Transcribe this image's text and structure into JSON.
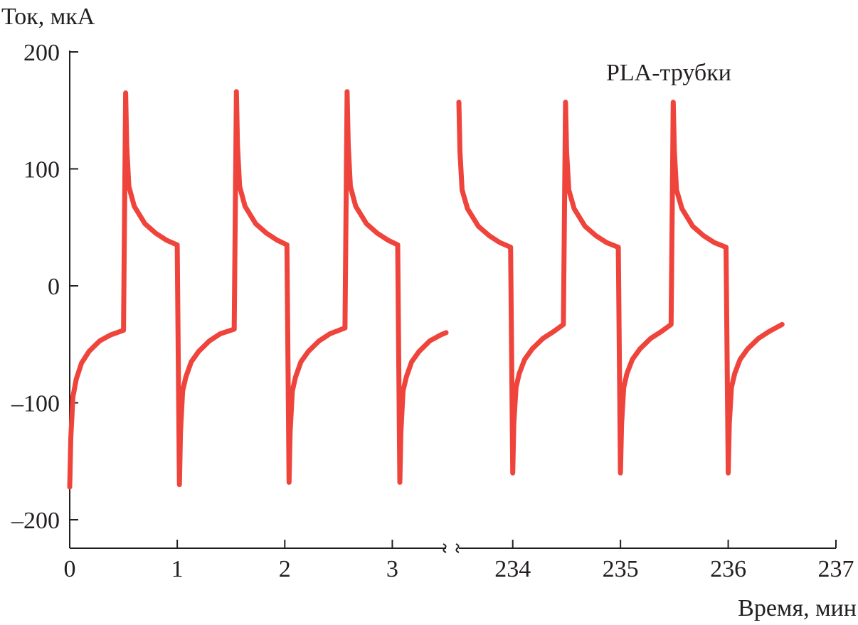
{
  "chart_data": {
    "type": "line",
    "ylabel": "Ток, мкА",
    "xlabel": "Время, мин",
    "annotation": "PLA-трубки",
    "ylim": [
      -237,
      200
    ],
    "yticks": [
      200,
      100,
      0,
      -100,
      -200
    ],
    "ytick_labels": [
      "200",
      "100",
      "0",
      "–100",
      "–200"
    ],
    "x_broken_axis": true,
    "x_segments": [
      {
        "xlim": [
          0,
          3.5
        ],
        "ticks": [
          0,
          1,
          2,
          3
        ],
        "tick_labels": [
          "0",
          "1",
          "2",
          "3"
        ]
      },
      {
        "xlim": [
          233.5,
          237
        ],
        "ticks": [
          234,
          235,
          236,
          237
        ],
        "tick_labels": [
          "234",
          "235",
          "236",
          "237"
        ]
      }
    ],
    "grid": false,
    "series_color": "#ef443b",
    "series": [
      {
        "segment": 0,
        "points": [
          [
            0,
            -172
          ],
          [
            0.01,
            -130
          ],
          [
            0.03,
            -95
          ],
          [
            0.06,
            -80
          ],
          [
            0.11,
            -66
          ],
          [
            0.18,
            -56
          ],
          [
            0.28,
            -47
          ],
          [
            0.38,
            -42
          ],
          [
            0.5,
            -38
          ],
          [
            0.52,
            165
          ],
          [
            0.53,
            120
          ],
          [
            0.55,
            85
          ],
          [
            0.6,
            68
          ],
          [
            0.7,
            53
          ],
          [
            0.8,
            45
          ],
          [
            0.9,
            39
          ],
          [
            1.0,
            35
          ],
          [
            1.02,
            -170
          ],
          [
            1.03,
            -125
          ],
          [
            1.05,
            -90
          ],
          [
            1.08,
            -78
          ],
          [
            1.13,
            -65
          ],
          [
            1.2,
            -56
          ],
          [
            1.3,
            -47
          ],
          [
            1.4,
            -41
          ],
          [
            1.53,
            -37
          ],
          [
            1.55,
            166
          ],
          [
            1.56,
            120
          ],
          [
            1.58,
            85
          ],
          [
            1.63,
            68
          ],
          [
            1.73,
            53
          ],
          [
            1.83,
            45
          ],
          [
            1.93,
            39
          ],
          [
            2.02,
            35
          ],
          [
            2.04,
            -168
          ],
          [
            2.05,
            -125
          ],
          [
            2.07,
            -90
          ],
          [
            2.1,
            -78
          ],
          [
            2.15,
            -65
          ],
          [
            2.22,
            -56
          ],
          [
            2.32,
            -47
          ],
          [
            2.42,
            -41
          ],
          [
            2.56,
            -36
          ],
          [
            2.58,
            166
          ],
          [
            2.59,
            120
          ],
          [
            2.61,
            85
          ],
          [
            2.66,
            68
          ],
          [
            2.76,
            53
          ],
          [
            2.86,
            45
          ],
          [
            2.96,
            39
          ],
          [
            3.05,
            35
          ],
          [
            3.07,
            -168
          ],
          [
            3.08,
            -125
          ],
          [
            3.1,
            -90
          ],
          [
            3.13,
            -78
          ],
          [
            3.18,
            -65
          ],
          [
            3.25,
            -56
          ],
          [
            3.35,
            -47
          ],
          [
            3.45,
            -42
          ],
          [
            3.5,
            -40
          ]
        ]
      },
      {
        "segment": 1,
        "points": [
          [
            233.5,
            157
          ],
          [
            233.51,
            115
          ],
          [
            233.53,
            82
          ],
          [
            233.58,
            66
          ],
          [
            233.68,
            51
          ],
          [
            233.78,
            43
          ],
          [
            233.88,
            37
          ],
          [
            233.98,
            33
          ],
          [
            234.0,
            -160
          ],
          [
            234.01,
            -118
          ],
          [
            234.03,
            -87
          ],
          [
            234.06,
            -75
          ],
          [
            234.11,
            -63
          ],
          [
            234.18,
            -54
          ],
          [
            234.28,
            -45
          ],
          [
            234.38,
            -39
          ],
          [
            234.47,
            -33
          ],
          [
            234.49,
            157
          ],
          [
            234.5,
            115
          ],
          [
            234.52,
            82
          ],
          [
            234.57,
            66
          ],
          [
            234.67,
            51
          ],
          [
            234.77,
            43
          ],
          [
            234.87,
            37
          ],
          [
            234.98,
            33
          ],
          [
            235.0,
            -160
          ],
          [
            235.01,
            -118
          ],
          [
            235.03,
            -87
          ],
          [
            235.06,
            -75
          ],
          [
            235.11,
            -63
          ],
          [
            235.18,
            -54
          ],
          [
            235.28,
            -45
          ],
          [
            235.38,
            -39
          ],
          [
            235.47,
            -33
          ],
          [
            235.49,
            157
          ],
          [
            235.5,
            115
          ],
          [
            235.52,
            82
          ],
          [
            235.57,
            66
          ],
          [
            235.67,
            51
          ],
          [
            235.77,
            43
          ],
          [
            235.87,
            37
          ],
          [
            235.98,
            33
          ],
          [
            236.0,
            -160
          ],
          [
            236.01,
            -118
          ],
          [
            236.03,
            -87
          ],
          [
            236.06,
            -75
          ],
          [
            236.11,
            -63
          ],
          [
            236.18,
            -54
          ],
          [
            236.28,
            -45
          ],
          [
            236.38,
            -39
          ],
          [
            236.5,
            -33
          ]
        ]
      }
    ]
  }
}
